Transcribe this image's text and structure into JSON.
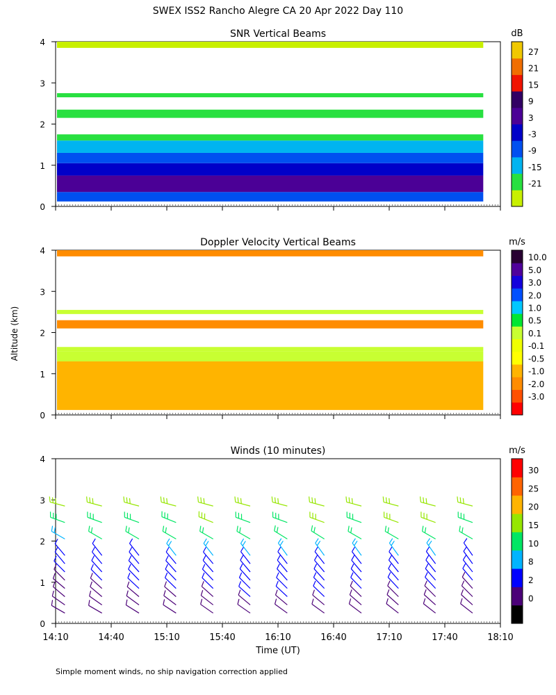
{
  "figure": {
    "title": "SWEX ISS2 Rancho Alegre CA  20 Apr 2022 Day 110",
    "ylabel": "Altitude (km)",
    "xlabel": "Time (UT)",
    "footnote": "Simple moment winds, no ship navigation correction applied"
  },
  "x_axis": {
    "ticks": [
      "14:10",
      "14:40",
      "15:10",
      "15:40",
      "16:10",
      "16:40",
      "17:10",
      "17:40",
      "18:10"
    ],
    "range_minutes": [
      0,
      240
    ]
  },
  "y_axis": {
    "ticks": [
      "0",
      "1",
      "2",
      "3",
      "4"
    ],
    "range_km": [
      0,
      4
    ]
  },
  "colors": {
    "snr": [
      "#c8f000",
      "#28e040",
      "#00b4f0",
      "#0050f0",
      "#0000c8",
      "#4b0096",
      "#320064",
      "#f01400",
      "#f06e00",
      "#f0c800"
    ],
    "velocity": [
      "#ff0000",
      "#ff5000",
      "#ff8c00",
      "#ffb400",
      "#ffff00",
      "#f0ff00",
      "#c8ff32",
      "#00e632",
      "#00c8ff",
      "#0050ff",
      "#1400dc",
      "#50009b",
      "#280032"
    ],
    "winds": [
      "#000000",
      "#4b0078",
      "#0000ff",
      "#00b4ff",
      "#00e664",
      "#96e600",
      "#ffb400",
      "#ff6400",
      "#ff0000"
    ]
  },
  "chart_data": [
    {
      "type": "heatmap",
      "title": "SNR Vertical Beams",
      "units": "dB",
      "colorbar_labels": [
        "27",
        "21",
        "15",
        "9",
        "3",
        "-3",
        "-9",
        "-15",
        "-21"
      ],
      "x_range_minutes": [
        0,
        230
      ],
      "y_range_km": [
        0.12,
        4.0
      ],
      "layers": [
        {
          "z_km": [
            0.12,
            0.35
          ],
          "bin": 3
        },
        {
          "z_km": [
            0.35,
            0.75
          ],
          "bin": 5
        },
        {
          "z_km": [
            0.75,
            1.05
          ],
          "bin": 4
        },
        {
          "z_km": [
            1.05,
            1.3
          ],
          "bin": 3
        },
        {
          "z_km": [
            1.3,
            1.6
          ],
          "bin": 2
        },
        {
          "z_km": [
            1.6,
            1.75
          ],
          "bin": 1
        },
        {
          "z_km": [
            2.15,
            2.35
          ],
          "bin": 1
        },
        {
          "z_km": [
            2.65,
            2.75
          ],
          "bin": 1
        },
        {
          "z_km": [
            3.85,
            4.0
          ],
          "bin": 0
        }
      ]
    },
    {
      "type": "heatmap",
      "title": "Doppler Velocity Vertical Beams",
      "units": "m/s",
      "colorbar_labels": [
        "10.0",
        "5.0",
        "3.0",
        "2.0",
        "1.0",
        "0.5",
        "0.1",
        "-0.1",
        "-0.5",
        "-1.0",
        "-2.0",
        "-3.0"
      ],
      "x_range_minutes": [
        0,
        230
      ],
      "y_range_km": [
        0.12,
        4.0
      ],
      "layers": [
        {
          "z_km": [
            0.12,
            1.3
          ],
          "bin": 3
        },
        {
          "z_km": [
            1.3,
            1.55
          ],
          "bin": 6
        },
        {
          "z_km": [
            1.55,
            1.65
          ],
          "bin": 6
        },
        {
          "z_km": [
            2.1,
            2.3
          ],
          "bin": 2
        },
        {
          "z_km": [
            2.45,
            2.55
          ],
          "bin": 6
        },
        {
          "z_km": [
            3.85,
            4.0
          ],
          "bin": 2
        }
      ]
    },
    {
      "type": "wind_barbs",
      "title": "Winds (10 minutes)",
      "units": "m/s",
      "colorbar_labels": [
        "30",
        "25",
        "20",
        "15",
        "10",
        "8",
        "2",
        "0"
      ],
      "time_minutes": [
        5,
        25,
        45,
        65,
        85,
        105,
        125,
        145,
        165,
        185,
        205,
        225
      ],
      "levels_km": [
        0.25,
        0.45,
        0.65,
        0.85,
        1.05,
        1.25,
        1.45,
        1.65,
        2.05,
        2.45,
        2.85
      ],
      "speed_ms": [
        [
          3,
          3,
          3,
          4,
          4,
          5,
          6,
          7,
          10,
          14,
          15
        ],
        [
          3,
          3,
          4,
          4,
          5,
          5,
          6,
          7,
          11,
          14,
          16
        ],
        [
          3,
          3,
          4,
          5,
          5,
          6,
          6,
          7,
          12,
          14,
          15
        ],
        [
          3,
          4,
          4,
          5,
          5,
          6,
          7,
          8,
          12,
          14,
          15
        ],
        [
          3,
          4,
          4,
          5,
          6,
          6,
          7,
          8,
          12,
          15,
          16
        ],
        [
          4,
          4,
          5,
          5,
          6,
          6,
          7,
          8,
          11,
          14,
          16
        ],
        [
          3,
          4,
          5,
          5,
          6,
          6,
          7,
          8,
          12,
          14,
          17
        ],
        [
          3,
          4,
          5,
          5,
          6,
          7,
          7,
          8,
          12,
          15,
          16
        ],
        [
          3,
          4,
          4,
          5,
          6,
          7,
          7,
          8,
          11,
          14,
          16
        ],
        [
          3,
          3,
          4,
          5,
          6,
          6,
          7,
          8,
          12,
          15,
          15
        ],
        [
          3,
          3,
          4,
          5,
          5,
          6,
          7,
          8,
          12,
          15,
          16
        ],
        [
          3,
          3,
          4,
          4,
          5,
          6,
          7,
          7,
          11,
          14,
          15
        ]
      ],
      "direction_deg": [
        [
          300,
          305,
          310,
          310,
          315,
          315,
          320,
          320,
          300,
          290,
          285
        ],
        [
          300,
          305,
          310,
          312,
          315,
          318,
          320,
          322,
          300,
          290,
          285
        ],
        [
          302,
          306,
          310,
          313,
          316,
          318,
          320,
          322,
          300,
          290,
          285
        ],
        [
          303,
          307,
          311,
          314,
          316,
          318,
          320,
          322,
          300,
          292,
          285
        ],
        [
          305,
          308,
          312,
          314,
          316,
          319,
          320,
          322,
          300,
          292,
          285
        ],
        [
          305,
          310,
          312,
          315,
          318,
          320,
          322,
          322,
          300,
          290,
          285
        ],
        [
          306,
          310,
          313,
          315,
          318,
          320,
          322,
          324,
          302,
          290,
          285
        ],
        [
          306,
          310,
          314,
          316,
          318,
          320,
          322,
          324,
          302,
          290,
          285
        ],
        [
          307,
          311,
          314,
          316,
          318,
          320,
          322,
          324,
          300,
          290,
          285
        ],
        [
          308,
          312,
          315,
          317,
          319,
          321,
          322,
          324,
          300,
          290,
          285
        ],
        [
          308,
          312,
          315,
          317,
          319,
          321,
          323,
          325,
          300,
          290,
          285
        ],
        [
          308,
          312,
          315,
          318,
          320,
          322,
          324,
          325,
          300,
          290,
          285
        ]
      ]
    }
  ]
}
